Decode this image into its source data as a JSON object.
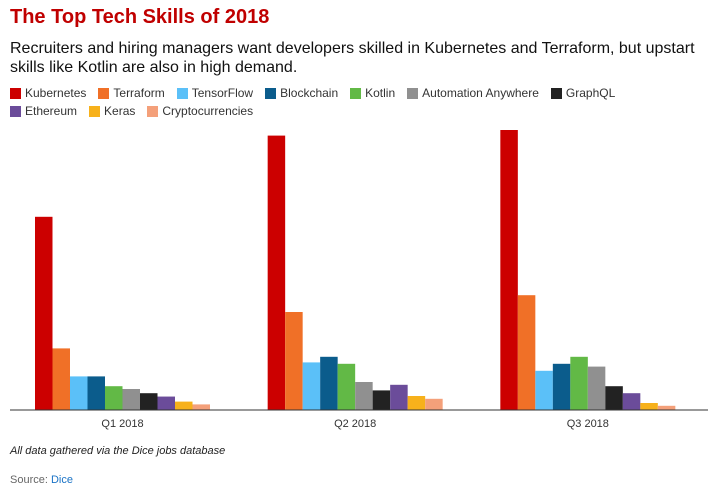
{
  "title": "The Top Tech Skills of 2018",
  "subtitle": "Recruiters and hiring managers want developers skilled in Kubernetes and Terraform, but upstart skills like Kotlin are also in high demand.",
  "note": "All data gathered via the Dice jobs database",
  "source": {
    "label": "Source:",
    "link_text": "Dice"
  },
  "chart_data": {
    "type": "bar",
    "title": "The Top Tech Skills of 2018",
    "xlabel": "",
    "ylabel": "",
    "grid": false,
    "legend_position": "top",
    "categories": [
      "Q1 2018",
      "Q2 2018",
      "Q3 2018"
    ],
    "ylim": [
      0,
      100
    ],
    "series": [
      {
        "name": "Kubernetes",
        "color": "#cc0000",
        "values": [
          69,
          98,
          100
        ]
      },
      {
        "name": "Terraform",
        "color": "#f07027",
        "values": [
          22,
          35,
          41
        ]
      },
      {
        "name": "TensorFlow",
        "color": "#5bc0f8",
        "values": [
          12,
          17,
          14
        ]
      },
      {
        "name": "Blockchain",
        "color": "#0b5c8c",
        "values": [
          12,
          19,
          16.5
        ]
      },
      {
        "name": "Kotlin",
        "color": "#62b946",
        "values": [
          8.5,
          16.5,
          19
        ]
      },
      {
        "name": "Automation Anywhere",
        "color": "#909090",
        "values": [
          7.5,
          10,
          15.5
        ]
      },
      {
        "name": "GraphQL",
        "color": "#222222",
        "values": [
          6,
          7,
          8.5
        ]
      },
      {
        "name": "Ethereum",
        "color": "#6b4c9a",
        "values": [
          4.8,
          9,
          6
        ]
      },
      {
        "name": "Keras",
        "color": "#f7b11b",
        "values": [
          3,
          5,
          2.5
        ]
      },
      {
        "name": "Cryptocurrencies",
        "color": "#f4a07a",
        "values": [
          2,
          4,
          1.5
        ]
      }
    ]
  }
}
